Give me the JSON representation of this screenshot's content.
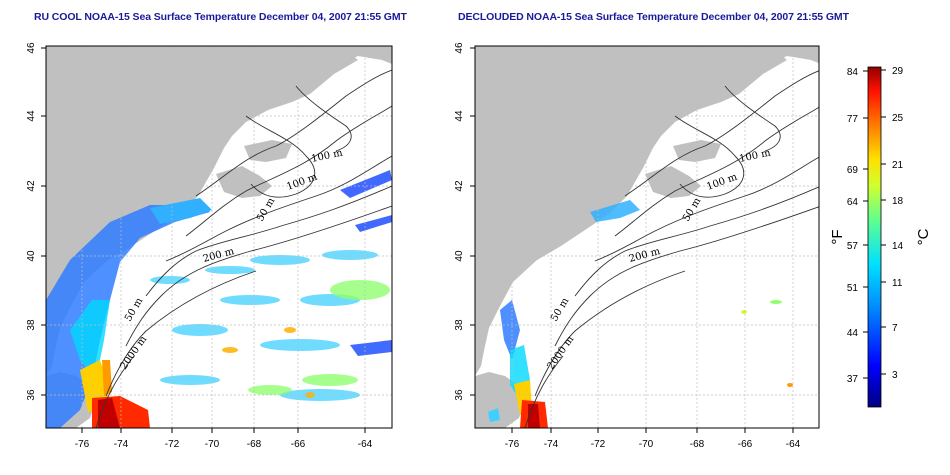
{
  "titles": {
    "left": "RU COOL NOAA-15 Sea Surface Temperature December 04, 2007 21:55 GMT",
    "right": "DECLOUDED NOAA-15 Sea Surface Temperature December 04, 2007 21:55 GMT"
  },
  "axes": {
    "x_ticks": [
      "-76",
      "-74",
      "-72",
      "-70",
      "-68",
      "-66",
      "-64"
    ],
    "y_ticks": [
      "36",
      "38",
      "40",
      "42",
      "44",
      "46"
    ]
  },
  "contour_labels": [
    "100 m",
    "100 m",
    "50 m",
    "200 m",
    "50 m",
    "2000 m"
  ],
  "colorbar": {
    "fahrenheit_unit": "°F",
    "celsius_unit": "°C",
    "fahrenheit_ticks": [
      "84",
      "77",
      "69",
      "64",
      "57",
      "51",
      "44",
      "37"
    ],
    "celsius_ticks": [
      "29",
      "25",
      "21",
      "18",
      "14",
      "11",
      "7",
      "3"
    ]
  },
  "colors": {
    "title": "#1a1a9c",
    "land": "#c0c0c0",
    "grid": "#bdbdbd"
  }
}
